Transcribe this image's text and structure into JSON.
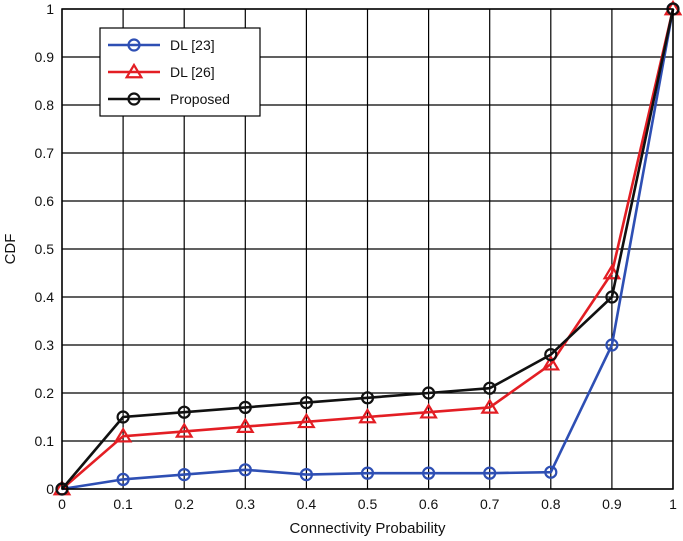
{
  "chart_data": {
    "type": "line",
    "title": "",
    "xlabel": "Connectivity Probability",
    "ylabel": "CDF",
    "xlim": [
      0,
      1
    ],
    "ylim": [
      0,
      1
    ],
    "grid": true,
    "legend_position": "top-left",
    "x": [
      0,
      0.1,
      0.2,
      0.3,
      0.4,
      0.5,
      0.6,
      0.7,
      0.8,
      0.9,
      1
    ],
    "x_ticks": [
      "0",
      "0.1",
      "0.2",
      "0.3",
      "0.4",
      "0.5",
      "0.6",
      "0.7",
      "0.8",
      "0.9",
      "1"
    ],
    "y_ticks": [
      "0",
      "0.1",
      "0.2",
      "0.3",
      "0.4",
      "0.5",
      "0.6",
      "0.7",
      "0.8",
      "0.9",
      "1"
    ],
    "series": [
      {
        "name": "DL [23]",
        "color": "#2e4fb4",
        "marker": "circle",
        "values": [
          0,
          0.02,
          0.03,
          0.04,
          0.03,
          0.033,
          0.033,
          0.033,
          0.035,
          0.3,
          1
        ]
      },
      {
        "name": "DL [26]",
        "color": "#e31e24",
        "marker": "triangle",
        "values": [
          0,
          0.11,
          0.12,
          0.13,
          0.14,
          0.15,
          0.16,
          0.17,
          0.26,
          0.45,
          1
        ]
      },
      {
        "name": "Proposed",
        "color": "#111111",
        "marker": "circle",
        "values": [
          0,
          0.15,
          0.16,
          0.17,
          0.18,
          0.19,
          0.2,
          0.21,
          0.28,
          0.4,
          1
        ]
      }
    ]
  }
}
